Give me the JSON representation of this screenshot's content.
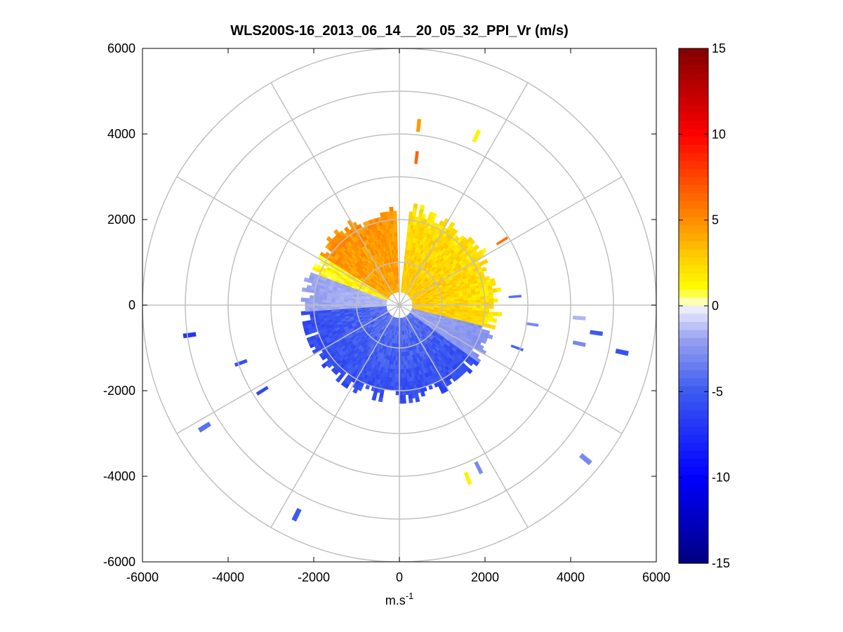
{
  "chart_data": {
    "type": "heatmap",
    "subtype": "polar-ppi",
    "title": "WLS200S-16_2013_06_14__20_05_32_PPI_Vr (m/s)",
    "xlabel": "m.s",
    "xlabel_superscript": "-1",
    "ylabel": "",
    "xlim": [
      -6000,
      6000
    ],
    "ylim": [
      -6000,
      6000
    ],
    "xticks": [
      "-6000",
      "-4000",
      "-2000",
      "0",
      "2000",
      "4000",
      "6000"
    ],
    "yticks": [
      "6000",
      "4000",
      "2000",
      "0",
      "-2000",
      "-4000",
      "-6000"
    ],
    "xtick_values": [
      -6000,
      -4000,
      -2000,
      0,
      2000,
      4000,
      6000
    ],
    "ytick_values": [
      6000,
      4000,
      2000,
      0,
      -2000,
      -4000,
      -6000
    ],
    "polar_grid": {
      "ring_radii": [
        1000,
        2000,
        3000,
        4000,
        5000,
        6000
      ],
      "spoke_angles_deg": [
        0,
        30,
        60,
        90,
        120,
        150,
        180,
        210,
        240,
        270,
        300,
        330
      ]
    },
    "colorbar": {
      "min": -15,
      "max": 15,
      "ticks": [
        "15",
        "10",
        "5",
        "0",
        "-5",
        "-10",
        "-15"
      ],
      "tick_values": [
        15,
        10,
        5,
        0,
        -5,
        -10,
        -15
      ],
      "levels": 64
    },
    "data_regions": [
      {
        "name": "northeast-sector",
        "r_min": 300,
        "r_max": 2350,
        "az_from": 6,
        "az_to": 104,
        "v_near": 3,
        "v_far": 2,
        "description": "positive radial velocity, orange to yellow"
      },
      {
        "name": "northwest-sector",
        "r_min": 300,
        "r_max": 2300,
        "az_from": 302,
        "az_to": 358,
        "v_near": 4.2,
        "v_far": 4.8,
        "description": "positive radial velocity, orange"
      },
      {
        "name": "west-sector",
        "r_min": 300,
        "r_max": 2200,
        "az_from": 290,
        "az_to": 302,
        "v_near": 1.5,
        "v_far": 1.2,
        "description": "weak positive, pale yellow"
      },
      {
        "name": "southern-half",
        "r_min": 300,
        "r_max": 2300,
        "az_from": 104,
        "az_to": 290,
        "v_near": -4,
        "v_far": -6,
        "description": "negative radial velocity, blue"
      }
    ],
    "scattered_points": [
      {
        "x": 450,
        "y": 4200,
        "v": 4.5
      },
      {
        "x": 1800,
        "y": 3950,
        "v": 1.5
      },
      {
        "x": 400,
        "y": 3450,
        "v": 6.5
      },
      {
        "x": 2400,
        "y": 1500,
        "v": 6.0
      },
      {
        "x": 2700,
        "y": 200,
        "v": -4.0
      },
      {
        "x": 3100,
        "y": -450,
        "v": -3.0
      },
      {
        "x": 2750,
        "y": -1000,
        "v": -4.5
      },
      {
        "x": 4200,
        "y": -300,
        "v": -1.5
      },
      {
        "x": 4200,
        "y": -900,
        "v": -3.0
      },
      {
        "x": 4600,
        "y": -650,
        "v": -5.0
      },
      {
        "x": 5200,
        "y": -1100,
        "v": -5.5
      },
      {
        "x": 4350,
        "y": -3600,
        "v": -3.0
      },
      {
        "x": 1850,
        "y": -3800,
        "v": -3.0
      },
      {
        "x": 1600,
        "y": -4050,
        "v": 1.5
      },
      {
        "x": -4900,
        "y": -700,
        "v": -7.0
      },
      {
        "x": -3700,
        "y": -1350,
        "v": -5.5
      },
      {
        "x": -3200,
        "y": -2000,
        "v": -6.0
      },
      {
        "x": -4550,
        "y": -2850,
        "v": -4.0
      },
      {
        "x": -2400,
        "y": -4900,
        "v": -5.0
      }
    ]
  }
}
